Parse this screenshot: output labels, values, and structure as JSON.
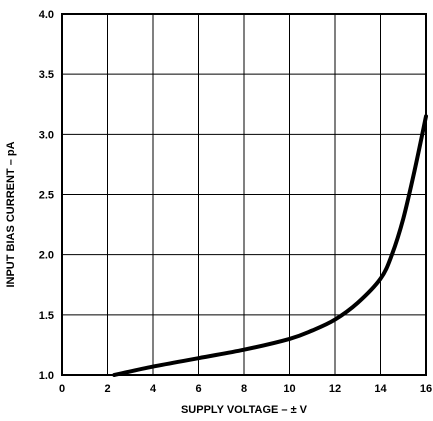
{
  "chart_data": {
    "type": "line",
    "title": "",
    "xlabel": "SUPPLY VOLTAGE – ± V",
    "ylabel": "INPUT BIAS CURRENT – pA",
    "xlim": [
      0,
      16
    ],
    "ylim": [
      1.0,
      4.0
    ],
    "x_ticks": [
      "0",
      "2",
      "4",
      "6",
      "8",
      "10",
      "12",
      "14",
      "16"
    ],
    "y_ticks": [
      "1.0",
      "1.5",
      "2.0",
      "2.5",
      "3.0",
      "3.5",
      "4.0"
    ],
    "grid": true,
    "legend": "none",
    "series": [
      {
        "x": [
          2.3,
          4,
          6,
          8,
          10,
          11,
          12,
          13,
          14,
          14.5,
          15,
          15.5,
          16
        ],
        "y": [
          1.0,
          1.07,
          1.14,
          1.21,
          1.3,
          1.37,
          1.46,
          1.6,
          1.8,
          2.0,
          2.3,
          2.7,
          3.15
        ]
      }
    ]
  }
}
